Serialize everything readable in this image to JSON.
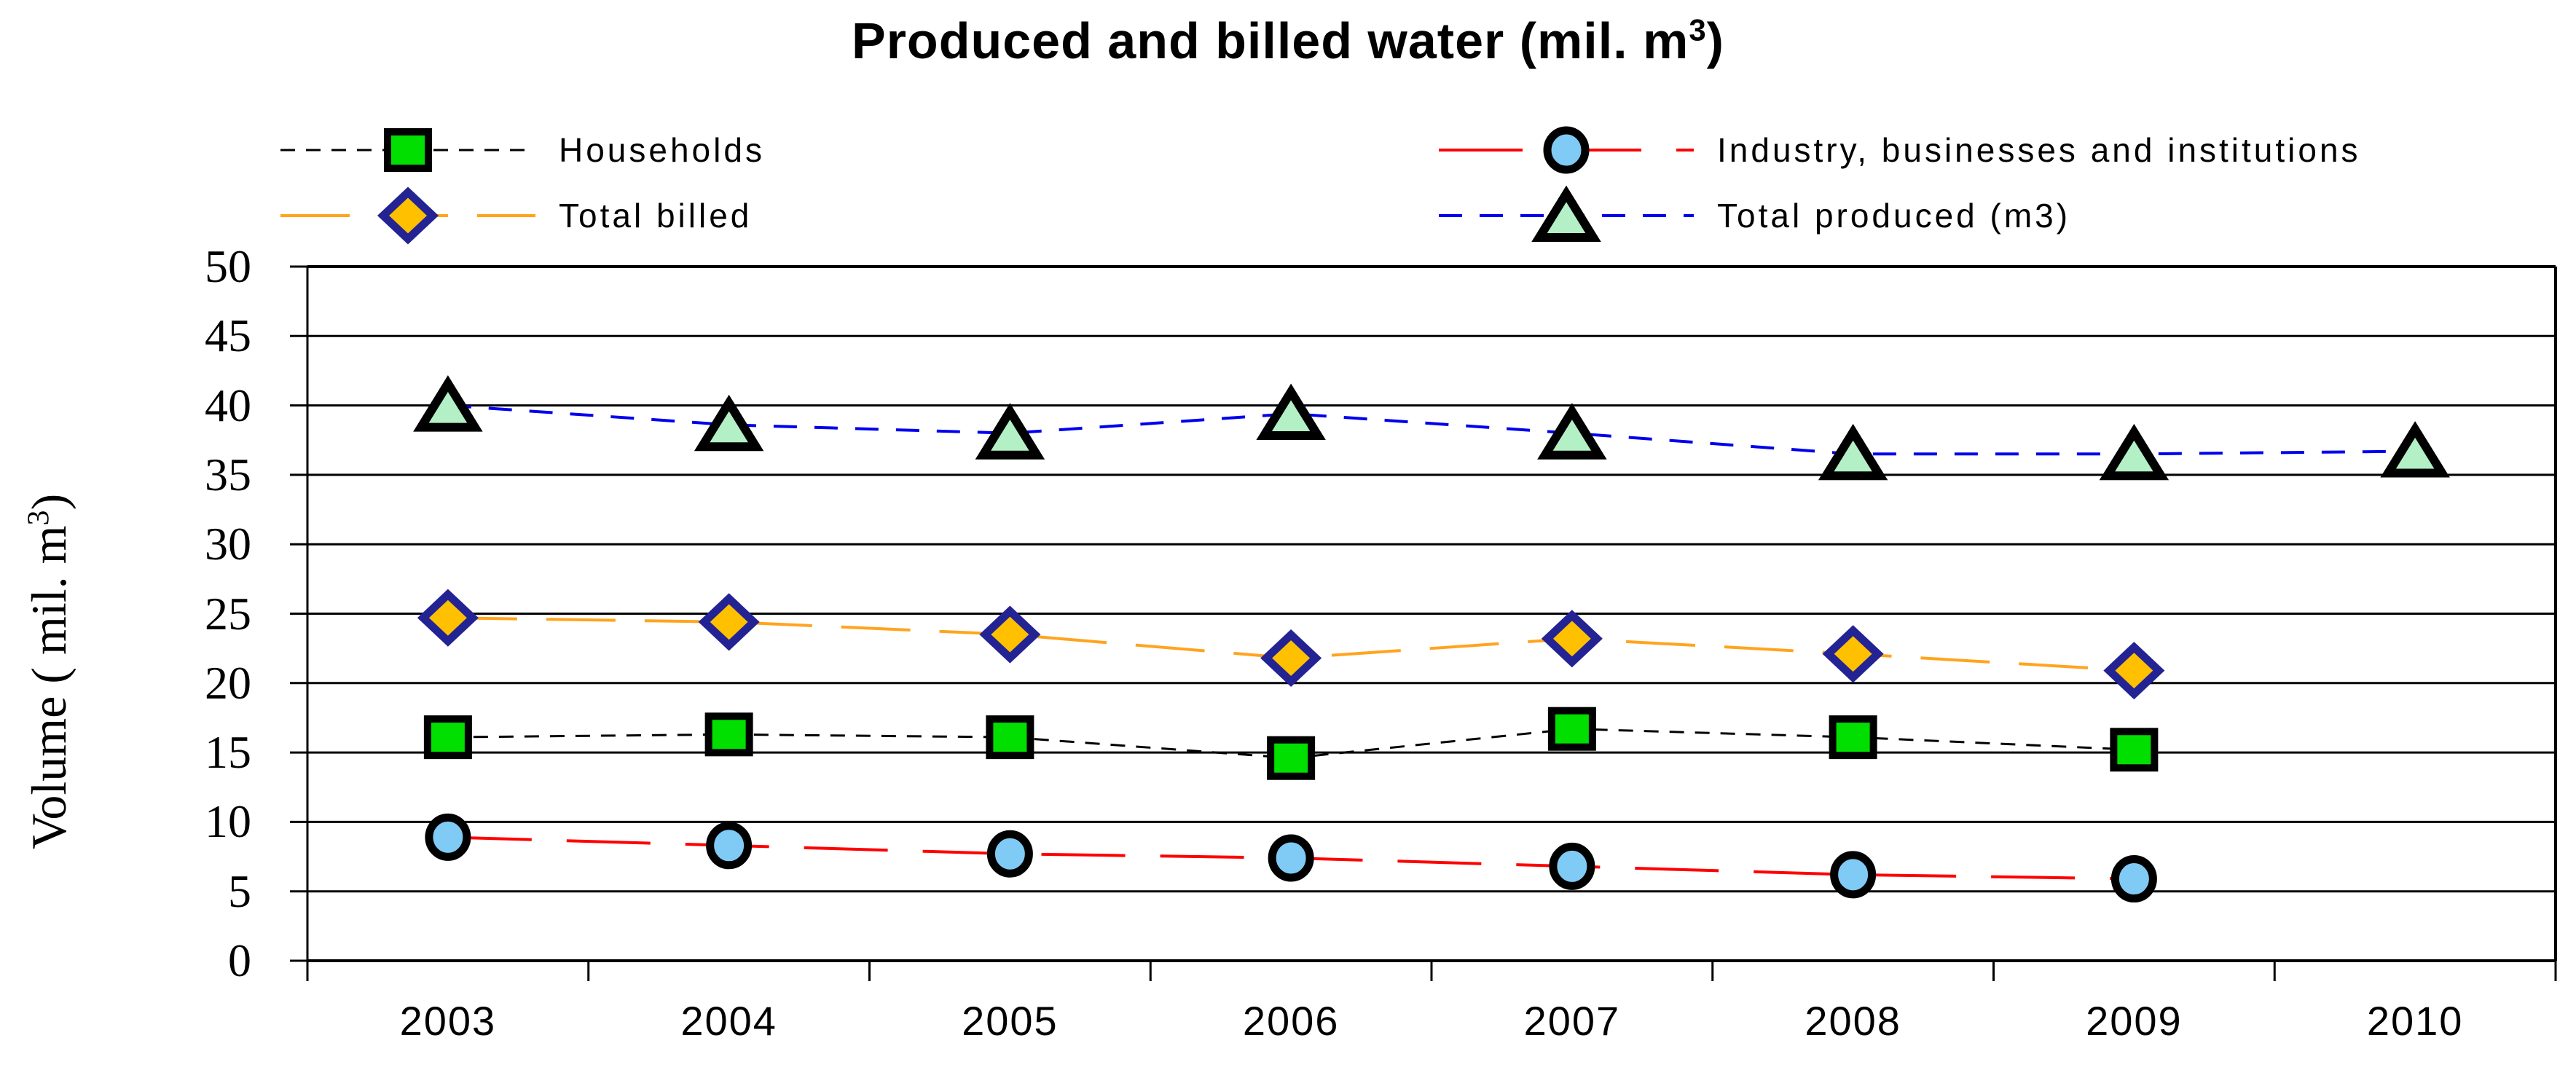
{
  "title": {
    "prefix": "Produced and billed water (mil. m",
    "sup": "3",
    "suffix": ")"
  },
  "y_axis": {
    "label_prefix": "Volume ( mil. m",
    "label_sup": "3",
    "label_suffix": ")"
  },
  "legend": {
    "columns": [
      [
        0,
        2
      ],
      [
        1,
        3
      ]
    ]
  },
  "chart_data": {
    "type": "line",
    "title": "Produced and billed water (mil. m³)",
    "ylabel": "Volume ( mil. m³)",
    "xlabel": "",
    "x_categories": [
      "2003",
      "2004",
      "2005",
      "2006",
      "2007",
      "2008",
      "2009",
      "2010"
    ],
    "ylim": [
      0,
      50
    ],
    "y_ticks": [
      0,
      5,
      10,
      15,
      20,
      25,
      30,
      35,
      40,
      45,
      50
    ],
    "grid": "horizontal-only",
    "legend_position": "top-two-columns",
    "series": [
      {
        "key": "households",
        "name": "Households",
        "marker": "square",
        "marker_fill": "#00DF00",
        "marker_stroke": "#000000",
        "line_color": "#000000",
        "line_width": 3,
        "dash": "20 15",
        "values": [
          16.1,
          16.3,
          16.1,
          14.6,
          16.7,
          16.1,
          15.2
        ]
      },
      {
        "key": "industry",
        "name": "Industry, businesses and institutions",
        "marker": "circle",
        "marker_fill": "#7FCBF5",
        "marker_stroke": "#000000",
        "line_color": "#FF0000",
        "line_width": 4,
        "dash": "115 48",
        "values": [
          8.9,
          8.3,
          7.7,
          7.4,
          6.8,
          6.2,
          5.9
        ]
      },
      {
        "key": "billed",
        "name": "Total billed",
        "marker": "diamond",
        "marker_fill": "#FFC000",
        "marker_stroke": "#232394",
        "line_color": "#FFA41E",
        "line_width": 4,
        "dash": "95 40",
        "values": [
          24.7,
          24.4,
          23.5,
          21.8,
          23.2,
          22.1,
          20.9
        ]
      },
      {
        "key": "produced",
        "name": "Total produced (m3)",
        "marker": "triangle",
        "marker_fill": "#B3F0C6",
        "marker_stroke": "#000000",
        "line_color": "#0000EE",
        "line_width": 4,
        "dash": "32 24",
        "values": [
          40.0,
          38.6,
          38.0,
          39.4,
          38.0,
          36.5,
          36.5,
          36.7
        ]
      }
    ]
  }
}
